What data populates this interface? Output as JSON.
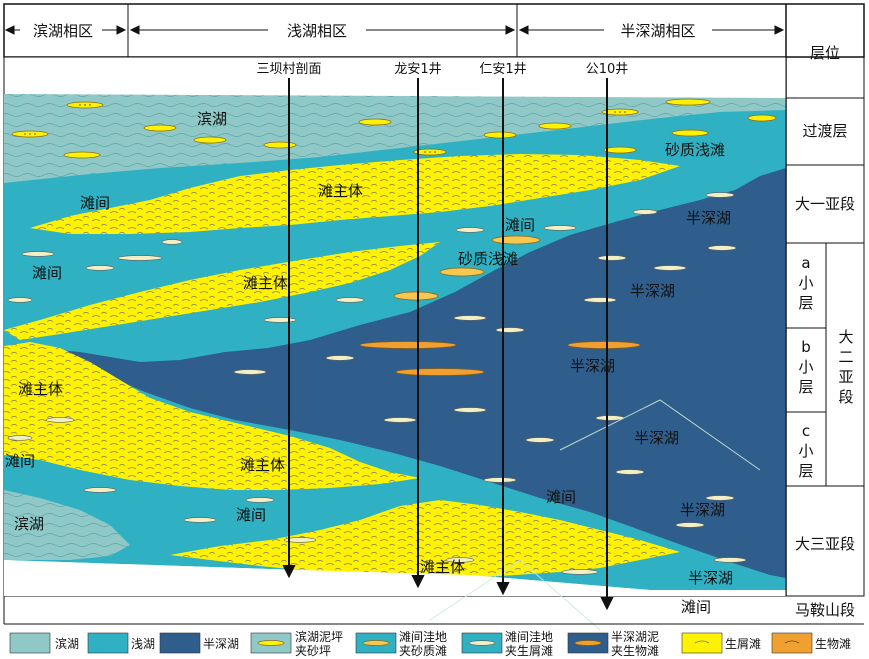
{
  "zones": {
    "binhu": "滨湖相区",
    "qianhu": "浅湖相区",
    "banshenhu": "半深湖相区"
  },
  "layer_header": "层位",
  "layers": {
    "guodu": "过渡层",
    "dayi": "大一亚段",
    "a_letter": "a",
    "a_1": "小",
    "a_2": "层",
    "b_letter": "b",
    "b_1": "小",
    "b_2": "层",
    "c_letter": "c",
    "c_1": "小",
    "c_2": "层",
    "daer_1": "大",
    "daer_2": "二",
    "daer_3": "亚",
    "daer_4": "段",
    "dasan": "大三亚段",
    "maanshan": "马鞍山段"
  },
  "wells": {
    "sanba": "三坝村剖面",
    "longan": "龙安1井",
    "renan": "仁安1井",
    "gong10": "公10井"
  },
  "facies": {
    "binhu_top": "滨湖",
    "shazhi_top": "砂质浅滩",
    "tanzhuti_1": "滩主体",
    "tanjian_1": "滩间",
    "tanjian_2": "滩间",
    "banshenhu_1": "半深湖",
    "shazhi_mid": "砂质浅滩",
    "tanjian_3": "滩间",
    "tanzhuti_2": "滩主体",
    "banshenhu_2": "半深湖",
    "banshenhu_3": "半深湖",
    "tanzhuti_3": "滩主体",
    "banshenhu_4": "半深湖",
    "tanjian_4": "滩间",
    "tanzhuti_4": "滩主体",
    "tanjian_5": "滩间",
    "banshenhu_5": "半深湖",
    "binhu_bottom": "滨湖",
    "tanjian_6": "滩间",
    "tanzhuti_5": "滩主体",
    "banshenhu_6": "半深湖",
    "tanjian_7": "滩间"
  },
  "legend": {
    "binhu": "滨湖",
    "qianhu": "浅湖",
    "banshenhu": "半深湖",
    "nibao_1": "滨湖泥坪",
    "nibao_2": "夹砂坪",
    "tanjian_sha_1": "滩间洼地",
    "tanjian_sha_2": "夹砂质滩",
    "tanjian_sx_1": "滩间洼地",
    "tanjian_sx_2": "夹生屑滩",
    "bsh_sw_1": "半深湖泥",
    "bsh_sw_2": "夹生物滩",
    "shengxie": "生屑滩",
    "shengwu": "生物滩"
  },
  "colors": {
    "binhu": "#8fc8c6",
    "qianhu": "#2fb1c3",
    "banshenhu": "#2f5e8c",
    "yellow": "#fff200",
    "orange": "#f0a030"
  }
}
